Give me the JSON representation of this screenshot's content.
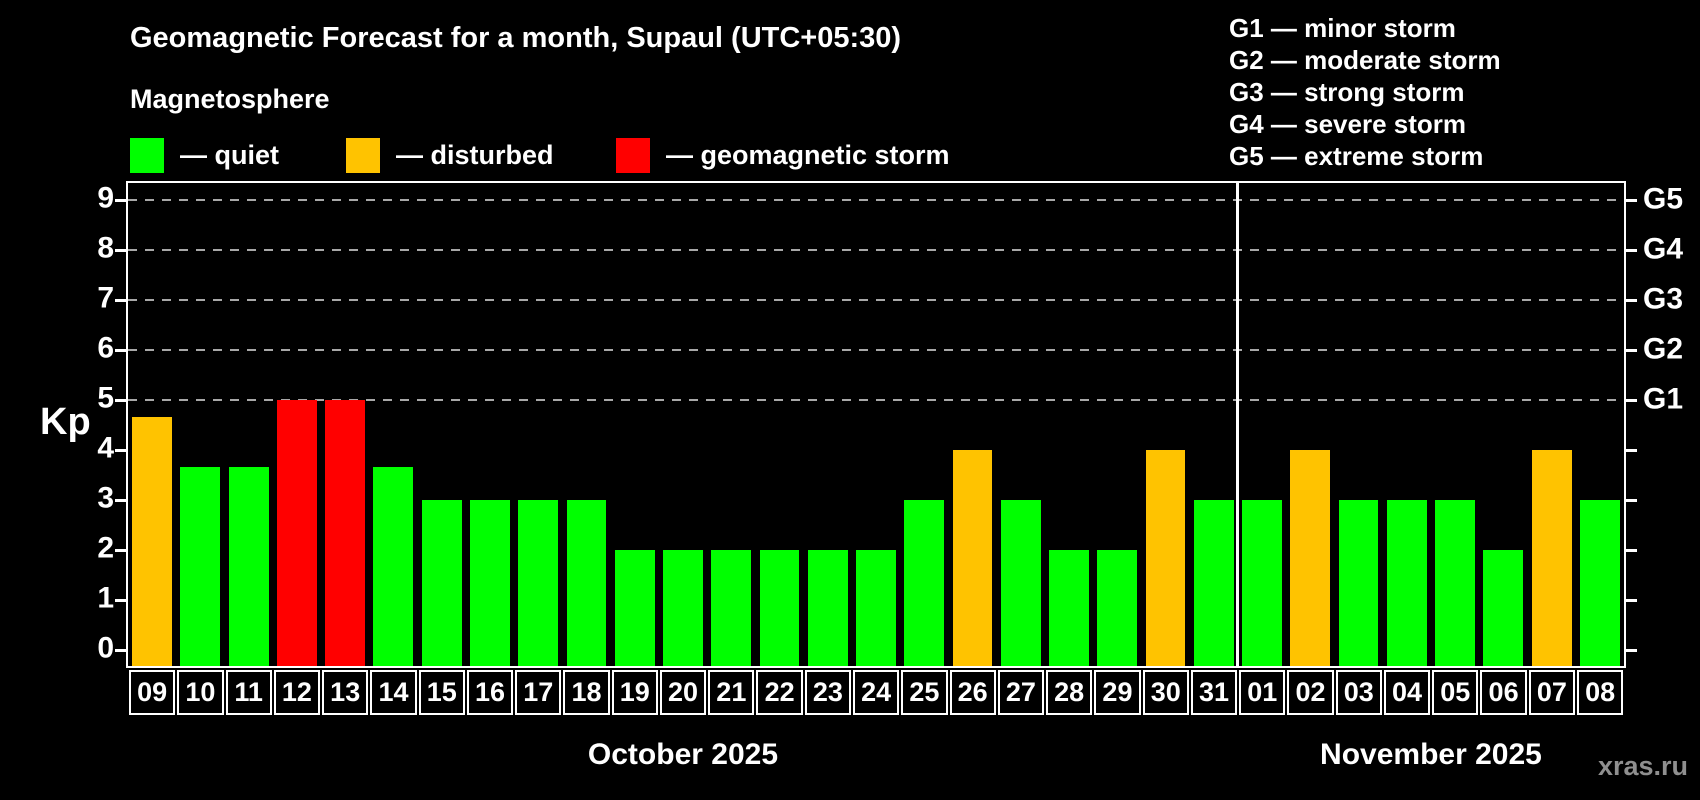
{
  "header": {
    "title": "Geomagnetic Forecast for a month, Supaul (UTC+05:30)",
    "subtitle": "Magnetosphere",
    "legend": [
      {
        "label": "— quiet",
        "status": "quiet"
      },
      {
        "label": "— disturbed",
        "status": "disturbed"
      },
      {
        "label": "— geomagnetic storm",
        "status": "storm"
      }
    ],
    "storm_scale": [
      {
        "text": "G1 — minor storm"
      },
      {
        "text": "G2 — moderate storm"
      },
      {
        "text": "G3 — strong storm"
      },
      {
        "text": "G4 — severe storm"
      },
      {
        "text": "G5 — extreme storm"
      }
    ]
  },
  "colors": {
    "quiet": "#00ff00",
    "disturbed": "#ffc300",
    "storm": "#ff0000",
    "axis": "#ffffff",
    "grid": "#a8a8a8",
    "background": "#000000",
    "watermark_text": "#8f8f8f"
  },
  "chart_data": {
    "type": "bar",
    "ylabel": "Kp",
    "ylim": [
      0,
      9.35
    ],
    "yticks": [
      0,
      1,
      2,
      3,
      4,
      5,
      6,
      7,
      8,
      9
    ],
    "gridlines_kp": [
      5,
      6,
      7,
      8,
      9
    ],
    "grid_style": "dashed",
    "legend_position": "top",
    "right_scale": [
      {
        "kp": 5,
        "label": "G1"
      },
      {
        "kp": 6,
        "label": "G2"
      },
      {
        "kp": 7,
        "label": "G3"
      },
      {
        "kp": 8,
        "label": "G4"
      },
      {
        "kp": 9,
        "label": "G5"
      }
    ],
    "categories": [
      "09",
      "10",
      "11",
      "12",
      "13",
      "14",
      "15",
      "16",
      "17",
      "18",
      "19",
      "20",
      "21",
      "22",
      "23",
      "24",
      "25",
      "26",
      "27",
      "28",
      "29",
      "30",
      "31",
      "01",
      "02",
      "03",
      "04",
      "05",
      "06",
      "07",
      "08"
    ],
    "values": [
      4.67,
      3.67,
      3.67,
      5,
      5,
      3.67,
      3,
      3,
      3,
      3,
      2,
      2,
      2,
      2,
      2,
      2,
      3,
      4,
      3,
      2,
      2,
      4,
      3,
      3,
      4,
      3,
      3,
      3,
      2,
      4,
      3
    ],
    "statuses": [
      "disturbed",
      "quiet",
      "quiet",
      "storm",
      "storm",
      "quiet",
      "quiet",
      "quiet",
      "quiet",
      "quiet",
      "quiet",
      "quiet",
      "quiet",
      "quiet",
      "quiet",
      "quiet",
      "quiet",
      "disturbed",
      "quiet",
      "quiet",
      "quiet",
      "disturbed",
      "quiet",
      "quiet",
      "disturbed",
      "quiet",
      "quiet",
      "quiet",
      "quiet",
      "disturbed",
      "quiet"
    ],
    "months": [
      {
        "label": "October 2025",
        "days": 23
      },
      {
        "label": "November 2025",
        "days": 8
      }
    ],
    "month_separator_after": 23
  },
  "watermark": "xras.ru"
}
